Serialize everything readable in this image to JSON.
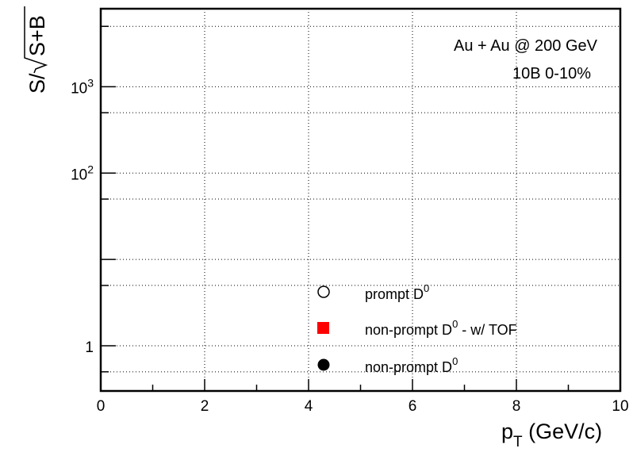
{
  "chart_data": {
    "type": "scatter",
    "title": "",
    "xlabel": {
      "base": "p",
      "sub": "T",
      "rest": " (GeV/c)"
    },
    "ylabel": {
      "prefix": "S/",
      "radicand": "S+B"
    },
    "xlim": [
      0,
      10
    ],
    "ylim": [
      0.3,
      8000
    ],
    "y_scale": "log",
    "grid": true,
    "x_ticks": [
      "0",
      "2",
      "4",
      "6",
      "8",
      "10"
    ],
    "y_ticks": [
      {
        "value": 1,
        "base": "1",
        "exp": ""
      },
      {
        "value": 100,
        "base": "10",
        "exp": "2"
      },
      {
        "value": 1000,
        "base": "10",
        "exp": "3"
      }
    ],
    "annotations": [
      "Au + Au @ 200 GeV",
      "10B 0-10%"
    ],
    "legend": {
      "position": "bottom-center",
      "entries": [
        {
          "marker": "open-circle",
          "label": "prompt D",
          "sup": "0",
          "suffix": "",
          "color": "#000000"
        },
        {
          "marker": "filled-square",
          "label": "non-prompt D",
          "sup": "0",
          "suffix": " - w/ TOF",
          "color": "#ff0000"
        },
        {
          "marker": "filled-circle",
          "label": "non-prompt D",
          "sup": "0",
          "suffix": "",
          "color": "#000000"
        }
      ]
    },
    "series": []
  }
}
